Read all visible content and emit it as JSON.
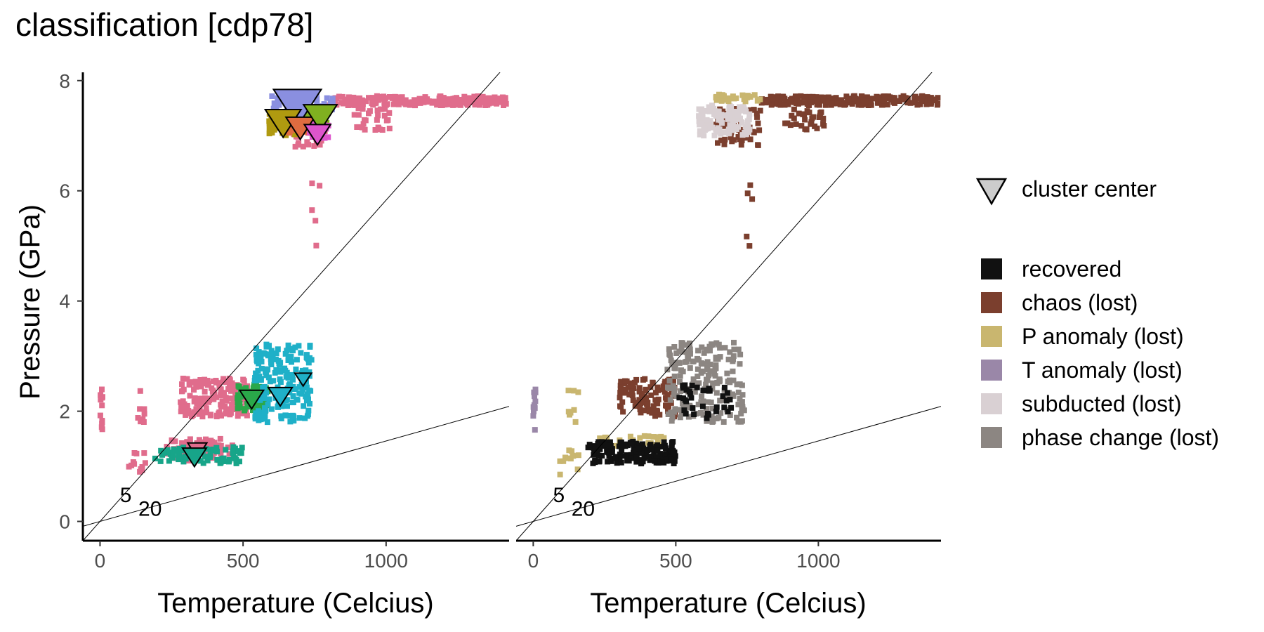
{
  "title": "classification [cdp78]",
  "colors": {
    "recovered": "#111111",
    "chaos": "#7b3f2e",
    "p_anomaly": "#c9b66f",
    "t_anomaly": "#9a87a8",
    "subducted": "#d9d0d3",
    "phase_change": "#8c8682",
    "cluster_palette": [
      "#e06c8c",
      "#17a589",
      "#2aa84a",
      "#1fb0c8",
      "#8a8fe0",
      "#b09a10",
      "#e06c40",
      "#80b020",
      "#dd55cc"
    ]
  },
  "chart_data": [
    {
      "type": "scatter",
      "panel": "left",
      "xlabel": "Temperature (Celcius)",
      "ylabel": "Pressure (GPa)",
      "xlim": [
        -60,
        1430
      ],
      "ylim": [
        -0.35,
        8.15
      ],
      "x_ticks": [
        0,
        500,
        1000
      ],
      "y_ticks": [
        0,
        2,
        4,
        6,
        8
      ],
      "ref_lines": [
        {
          "label": "5",
          "slope_gpa_per_c": 0.00583
        },
        {
          "label": "20",
          "slope_gpa_per_c": 0.00146
        }
      ],
      "regions": [
        {
          "class": "cluster-1",
          "x_range": [
            0,
            10
          ],
          "y_range": [
            1.5,
            2.4
          ],
          "count": 12
        },
        {
          "class": "cluster-1",
          "x_range": [
            90,
            160
          ],
          "y_range": [
            0.85,
            1.3
          ],
          "count": 12
        },
        {
          "class": "cluster-1",
          "x_range": [
            120,
            170
          ],
          "y_range": [
            1.8,
            2.4
          ],
          "count": 8
        },
        {
          "class": "cluster-1",
          "x_range": [
            230,
            470
          ],
          "y_range": [
            1.1,
            1.5
          ],
          "count": 70
        },
        {
          "class": "cluster-1",
          "x_range": [
            280,
            520
          ],
          "y_range": [
            1.9,
            2.6
          ],
          "count": 150
        },
        {
          "class": "cluster-2",
          "x_range": [
            190,
            500
          ],
          "y_range": [
            1.05,
            1.35
          ],
          "count": 80
        },
        {
          "class": "cluster-3",
          "x_range": [
            480,
            590
          ],
          "y_range": [
            2.0,
            2.5
          ],
          "count": 60
        },
        {
          "class": "cluster-4",
          "x_range": [
            540,
            740
          ],
          "y_range": [
            1.8,
            3.25
          ],
          "count": 190
        },
        {
          "class": "cluster-1",
          "x_range": [
            800,
            1420
          ],
          "y_range": [
            7.55,
            7.72
          ],
          "count": 200
        },
        {
          "class": "cluster-1",
          "x_range": [
            880,
            1020
          ],
          "y_range": [
            7.1,
            7.5
          ],
          "count": 30
        },
        {
          "class": "cluster-1",
          "x_range": [
            670,
            790
          ],
          "y_range": [
            6.8,
            7.1
          ],
          "count": 20
        },
        {
          "class": "cluster-1",
          "x_range": [
            740,
            770
          ],
          "y_range": [
            5.0,
            6.3
          ],
          "count": 5
        },
        {
          "class": "cluster-5",
          "x_range": [
            590,
            820
          ],
          "y_range": [
            7.45,
            7.72
          ],
          "count": 50
        },
        {
          "class": "cluster-6",
          "x_range": [
            590,
            700
          ],
          "y_range": [
            7.0,
            7.45
          ],
          "count": 60
        },
        {
          "class": "cluster-7",
          "x_range": [
            660,
            760
          ],
          "y_range": [
            7.0,
            7.4
          ],
          "count": 40
        },
        {
          "class": "cluster-8",
          "x_range": [
            720,
            800
          ],
          "y_range": [
            7.2,
            7.5
          ],
          "count": 30
        },
        {
          "class": "cluster-9",
          "x_range": [
            730,
            800
          ],
          "y_range": [
            6.95,
            7.25
          ],
          "count": 25
        }
      ],
      "cluster_centers": [
        {
          "x": 690,
          "y": 7.58,
          "size": 2.0,
          "fill": "#8a8fe0"
        },
        {
          "x": 640,
          "y": 7.28,
          "size": 1.5,
          "fill": "#b09a10"
        },
        {
          "x": 700,
          "y": 7.18,
          "size": 1.2,
          "fill": "#e06c40"
        },
        {
          "x": 770,
          "y": 7.38,
          "size": 1.4,
          "fill": "#80b020"
        },
        {
          "x": 760,
          "y": 7.06,
          "size": 1.1,
          "fill": "#dd55cc"
        },
        {
          "x": 530,
          "y": 2.25,
          "size": 1.0,
          "fill": "#2aa84a"
        },
        {
          "x": 630,
          "y": 2.3,
          "size": 1.0,
          "fill": "#1fb0c8"
        },
        {
          "x": 710,
          "y": 2.6,
          "size": 0.7,
          "fill": "#1fb0c8"
        },
        {
          "x": 340,
          "y": 1.32,
          "size": 0.8,
          "fill": "#e06c8c"
        },
        {
          "x": 330,
          "y": 1.2,
          "size": 1.0,
          "fill": "#17a589"
        }
      ]
    },
    {
      "type": "scatter",
      "panel": "right",
      "xlabel": "Temperature (Celcius)",
      "xlim": [
        -60,
        1430
      ],
      "ylim": [
        -0.35,
        8.15
      ],
      "x_ticks": [
        0,
        500,
        1000
      ],
      "ref_lines": [
        {
          "label": "5",
          "slope_gpa_per_c": 0.00583
        },
        {
          "label": "20",
          "slope_gpa_per_c": 0.00146
        }
      ],
      "regions": [
        {
          "class": "t_anomaly",
          "x_range": [
            0,
            10
          ],
          "y_range": [
            1.5,
            2.4
          ],
          "count": 12
        },
        {
          "class": "p_anomaly",
          "x_range": [
            90,
            160
          ],
          "y_range": [
            0.85,
            1.3
          ],
          "count": 12
        },
        {
          "class": "p_anomaly",
          "x_range": [
            120,
            170
          ],
          "y_range": [
            1.8,
            2.4
          ],
          "count": 8
        },
        {
          "class": "p_anomaly",
          "x_range": [
            230,
            470
          ],
          "y_range": [
            1.35,
            1.55
          ],
          "count": 30
        },
        {
          "class": "recovered",
          "x_range": [
            190,
            500
          ],
          "y_range": [
            1.05,
            1.45
          ],
          "count": 150
        },
        {
          "class": "chaos",
          "x_range": [
            300,
            500
          ],
          "y_range": [
            1.9,
            2.6
          ],
          "count": 110
        },
        {
          "class": "phase_change",
          "x_range": [
            470,
            740
          ],
          "y_range": [
            1.8,
            3.25
          ],
          "count": 190
        },
        {
          "class": "recovered",
          "x_range": [
            500,
            700
          ],
          "y_range": [
            1.85,
            2.5
          ],
          "count": 35
        },
        {
          "class": "chaos",
          "x_range": [
            800,
            1420
          ],
          "y_range": [
            7.55,
            7.72
          ],
          "count": 200
        },
        {
          "class": "chaos",
          "x_range": [
            880,
            1020
          ],
          "y_range": [
            7.1,
            7.5
          ],
          "count": 30
        },
        {
          "class": "chaos",
          "x_range": [
            640,
            800
          ],
          "y_range": [
            6.8,
            7.5
          ],
          "count": 60
        },
        {
          "class": "chaos",
          "x_range": [
            740,
            770
          ],
          "y_range": [
            5.0,
            6.3
          ],
          "count": 5
        },
        {
          "class": "subducted",
          "x_range": [
            580,
            760
          ],
          "y_range": [
            7.0,
            7.55
          ],
          "count": 120
        },
        {
          "class": "p_anomaly",
          "x_range": [
            640,
            800
          ],
          "y_range": [
            7.62,
            7.75
          ],
          "count": 30
        }
      ]
    }
  ],
  "legend": {
    "center_label": "cluster center",
    "items": [
      {
        "key": "recovered",
        "label": "recovered"
      },
      {
        "key": "chaos",
        "label": "chaos (lost)"
      },
      {
        "key": "p_anomaly",
        "label": "P anomaly (lost)"
      },
      {
        "key": "t_anomaly",
        "label": "T anomaly (lost)"
      },
      {
        "key": "subducted",
        "label": "subducted (lost)"
      },
      {
        "key": "phase_change",
        "label": "phase change (lost)"
      }
    ]
  }
}
